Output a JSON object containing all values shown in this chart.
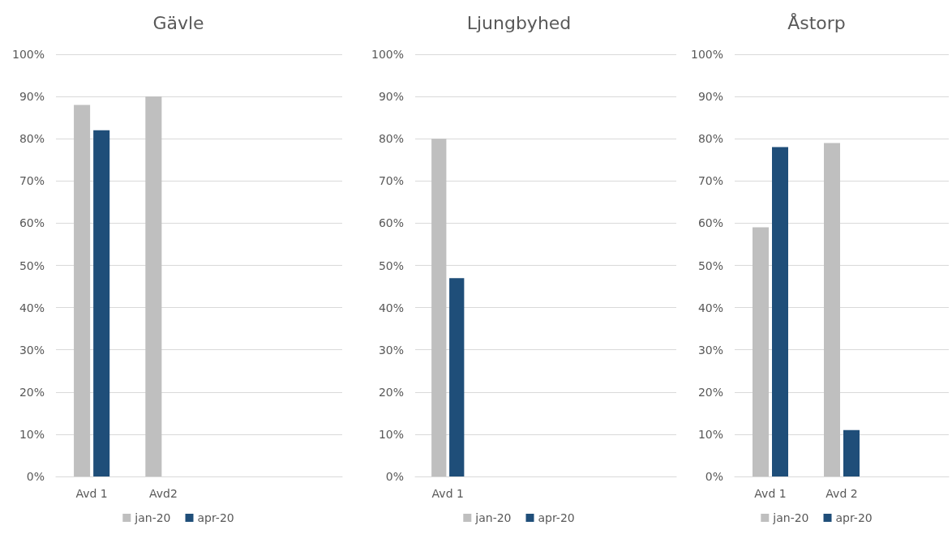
{
  "chart_data": [
    {
      "type": "bar",
      "title": "Gävle",
      "categories": [
        "Avd 1",
        "Avd2",
        null,
        null
      ],
      "series": [
        {
          "name": "jan-20",
          "color": "#bfbfbf",
          "values": [
            88,
            90,
            null,
            null
          ]
        },
        {
          "name": "apr-20",
          "color": "#1f4e79",
          "values": [
            82,
            null,
            null,
            null
          ]
        }
      ],
      "ylim": [
        0,
        100
      ],
      "yticks": [
        {
          "value": 0,
          "label": "0%"
        },
        {
          "value": 10,
          "label": "10%"
        },
        {
          "value": 20,
          "label": "20%"
        },
        {
          "value": 30,
          "label": "30%"
        },
        {
          "value": 40,
          "label": "40%"
        },
        {
          "value": 50,
          "label": "50%"
        },
        {
          "value": 60,
          "label": "60%"
        },
        {
          "value": 70,
          "label": "70%"
        },
        {
          "value": 80,
          "label": "80%"
        },
        {
          "value": 90,
          "label": "90%"
        },
        {
          "value": 100,
          "label": "100%"
        }
      ],
      "grid": "y",
      "legend": "bottom"
    },
    {
      "type": "bar",
      "title": "Ljungbyhed",
      "categories": [
        "Avd 1",
        null,
        null,
        null
      ],
      "series": [
        {
          "name": "jan-20",
          "color": "#bfbfbf",
          "values": [
            80,
            null,
            null,
            null
          ]
        },
        {
          "name": "apr-20",
          "color": "#1f4e79",
          "values": [
            47,
            null,
            null,
            null
          ]
        }
      ],
      "ylim": [
        0,
        100
      ],
      "yticks": [
        {
          "value": 0,
          "label": "0%"
        },
        {
          "value": 10,
          "label": "10%"
        },
        {
          "value": 20,
          "label": "20%"
        },
        {
          "value": 30,
          "label": "30%"
        },
        {
          "value": 40,
          "label": "40%"
        },
        {
          "value": 50,
          "label": "50%"
        },
        {
          "value": 60,
          "label": "60%"
        },
        {
          "value": 70,
          "label": "70%"
        },
        {
          "value": 80,
          "label": "80%"
        },
        {
          "value": 90,
          "label": "90%"
        },
        {
          "value": 100,
          "label": "100%"
        }
      ],
      "grid": "y",
      "legend": "bottom"
    },
    {
      "type": "bar",
      "title": "Åstorp",
      "categories": [
        "Avd 1",
        "Avd 2",
        null
      ],
      "series": [
        {
          "name": "jan-20",
          "color": "#bfbfbf",
          "values": [
            59,
            79,
            null
          ]
        },
        {
          "name": "apr-20",
          "color": "#1f4e79",
          "values": [
            78,
            11,
            null
          ]
        }
      ],
      "ylim": [
        0,
        100
      ],
      "yticks": [
        {
          "value": 0,
          "label": "0%"
        },
        {
          "value": 10,
          "label": "10%"
        },
        {
          "value": 20,
          "label": "20%"
        },
        {
          "value": 30,
          "label": "30%"
        },
        {
          "value": 40,
          "label": "40%"
        },
        {
          "value": 50,
          "label": "50%"
        },
        {
          "value": 60,
          "label": "60%"
        },
        {
          "value": 70,
          "label": "70%"
        },
        {
          "value": 80,
          "label": "80%"
        },
        {
          "value": 90,
          "label": "90%"
        },
        {
          "value": 100,
          "label": "100%"
        }
      ],
      "grid": "y",
      "legend": "bottom"
    }
  ]
}
